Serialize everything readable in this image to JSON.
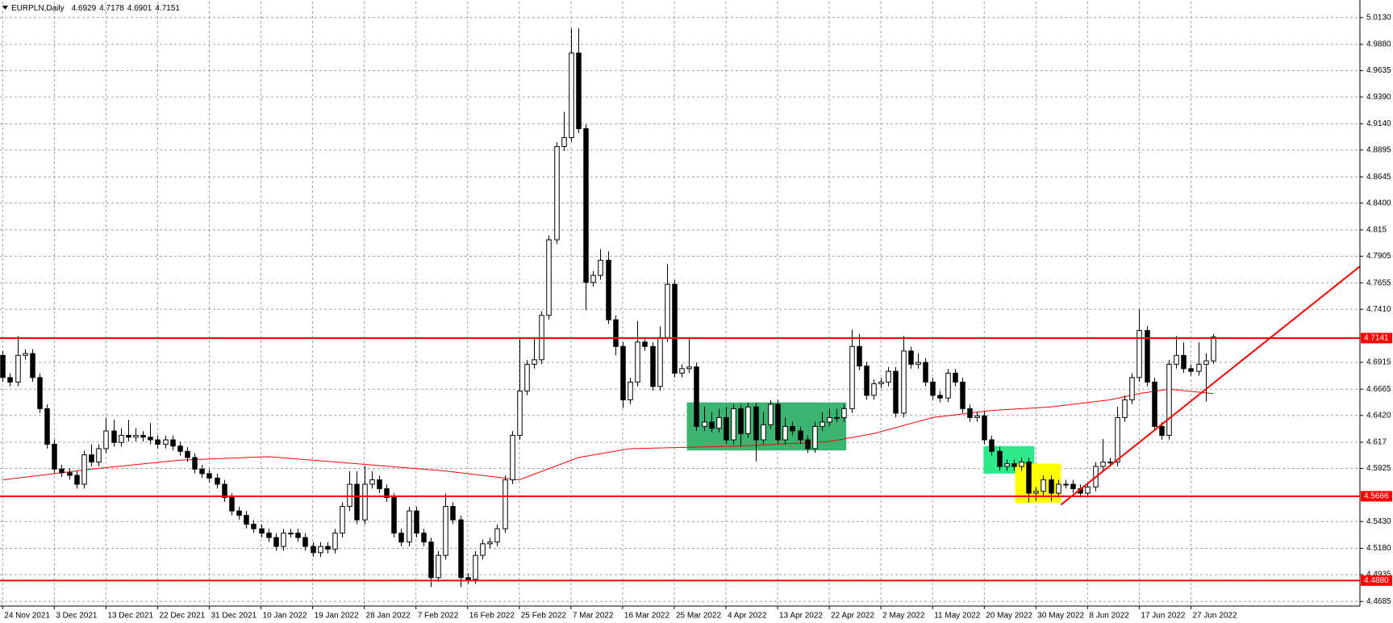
{
  "chart_data": {
    "type": "candlestick",
    "title": "EURPLN,Daily",
    "open": [
      4.698,
      4.6773,
      4.6731,
      4.698,
      4.6997,
      4.6773,
      4.6483,
      4.6151,
      4.5919,
      4.5886,
      4.5861,
      4.5778,
      4.6052,
      4.5985,
      4.611,
      4.6275,
      4.6168,
      4.6234,
      4.6217,
      4.6234,
      4.6217,
      4.6192,
      4.6151,
      4.6192,
      4.6134,
      4.6085,
      4.6027,
      4.5919,
      4.5877,
      4.5836,
      4.5778,
      4.5654,
      4.5529,
      4.5488,
      4.5405,
      4.5363,
      4.5322,
      4.5281,
      4.5198,
      4.5322,
      4.5322,
      4.5281,
      4.5198,
      4.514,
      4.5198,
      4.5173,
      4.5322,
      4.5571,
      4.5778,
      4.5446,
      4.5778,
      4.5819,
      4.5736,
      4.5654,
      4.5322,
      4.5239,
      4.5529,
      4.5322,
      4.5239,
      4.4907,
      4.5115,
      4.5571,
      4.5446,
      4.4907,
      4.4891,
      4.5115,
      4.5223,
      4.5239,
      4.5363,
      4.5819,
      4.6234,
      4.6648,
      4.6897,
      4.6939,
      4.7353,
      4.8058,
      4.8928,
      4.9011,
      4.9799,
      4.9094,
      4.766,
      4.7726,
      4.7867,
      4.7312,
      4.7063,
      4.6565,
      4.6731,
      4.7104,
      4.7063,
      4.669,
      4.7146,
      4.7643,
      4.6814,
      4.6856,
      4.6872,
      4.6317,
      4.6358,
      4.63,
      4.64,
      4.6192,
      4.6483,
      4.625,
      4.6499,
      4.6192,
      4.6333,
      4.6524,
      4.6192,
      4.6317,
      4.6275,
      4.6192,
      4.611,
      4.6317,
      4.6358,
      4.64,
      4.64,
      4.6483,
      4.7063,
      4.688,
      4.6607,
      4.6715,
      4.6731,
      4.6831,
      4.6441,
      4.7021,
      4.6897,
      4.6914,
      4.6731,
      4.6607,
      4.6582,
      4.6814,
      4.6731,
      4.6483,
      4.64,
      4.6416,
      4.6192,
      4.6085,
      4.5944,
      4.5969,
      4.5944,
      4.5985,
      4.5695,
      4.5712,
      4.5819,
      4.5695,
      4.5778,
      4.5778,
      4.5736,
      4.5695,
      4.5753,
      4.5944,
      4.5985,
      4.5985,
      4.64,
      4.6565,
      4.6773,
      4.7212,
      4.6731,
      4.6317,
      4.6234,
      4.6897,
      4.698,
      4.6856,
      4.6831,
      4.6897,
      4.6929
    ],
    "high": [
      4.702,
      4.6813,
      4.716,
      4.7037,
      4.7037,
      4.6813,
      4.6523,
      4.6191,
      4.5959,
      4.5926,
      4.5901,
      4.6092,
      4.615,
      4.615,
      4.64,
      4.638,
      4.63,
      4.638,
      4.63,
      4.6274,
      4.635,
      4.6232,
      4.6232,
      4.6232,
      4.6174,
      4.6125,
      4.6067,
      4.5959,
      4.5917,
      4.5876,
      4.5818,
      4.5694,
      4.5569,
      4.5528,
      4.5445,
      4.5403,
      4.5362,
      4.5321,
      4.5362,
      4.5362,
      4.5362,
      4.5321,
      4.5238,
      4.5238,
      4.5238,
      4.5362,
      4.5611,
      4.59,
      4.59,
      4.595,
      4.59,
      4.5859,
      4.5776,
      4.5694,
      4.5362,
      4.5569,
      4.5569,
      4.5362,
      4.5279,
      4.5155,
      4.569,
      4.5611,
      4.5486,
      4.4947,
      4.5155,
      4.5263,
      4.5279,
      4.5403,
      4.5859,
      4.6274,
      4.714,
      4.6937,
      4.715,
      4.7393,
      4.8098,
      4.8968,
      4.925,
      5.003,
      5.003,
      4.9134,
      4.7766,
      4.797,
      4.795,
      4.7352,
      4.7103,
      4.6771,
      4.73,
      4.7144,
      4.7103,
      4.725,
      4.783,
      4.7683,
      4.6896,
      4.715,
      4.6912,
      4.65,
      4.645,
      4.648,
      4.65,
      4.6523,
      4.6523,
      4.6539,
      4.6539,
      4.645,
      4.6564,
      4.6564,
      4.64,
      4.6357,
      4.6315,
      4.6232,
      4.6357,
      4.645,
      4.648,
      4.648,
      4.6523,
      4.722,
      4.718,
      4.692,
      4.6755,
      4.6771,
      4.6871,
      4.6871,
      4.716,
      4.7061,
      4.7,
      4.6954,
      4.6771,
      4.6647,
      4.6854,
      4.6854,
      4.6771,
      4.6523,
      4.6456,
      4.6456,
      4.6232,
      4.6125,
      4.6009,
      4.6009,
      4.6025,
      4.6025,
      4.5752,
      4.5859,
      4.5859,
      4.5818,
      4.5818,
      4.5818,
      4.5776,
      4.5793,
      4.5984,
      4.62,
      4.6025,
      4.65,
      4.6605,
      4.6813,
      4.741,
      4.7252,
      4.6771,
      4.6357,
      4.6937,
      4.716,
      4.71,
      4.6896,
      4.71,
      4.7,
      4.7178
    ],
    "low": [
      4.6733,
      4.6691,
      4.6691,
      4.694,
      4.6733,
      4.6443,
      4.6111,
      4.5879,
      4.5846,
      4.5821,
      4.5738,
      4.5738,
      4.5945,
      4.5945,
      4.607,
      4.6128,
      4.6128,
      4.6177,
      4.6177,
      4.6177,
      4.6152,
      4.6111,
      4.6111,
      4.6094,
      4.6045,
      4.5987,
      4.5879,
      4.5837,
      4.5796,
      4.5738,
      4.5614,
      4.5489,
      4.5448,
      4.5365,
      4.5323,
      4.5282,
      4.5241,
      4.5158,
      4.5158,
      4.5282,
      4.5241,
      4.5158,
      4.51,
      4.51,
      4.5133,
      4.5133,
      4.5282,
      4.5531,
      4.5406,
      4.5406,
      4.5738,
      4.5696,
      4.5614,
      4.5282,
      4.5199,
      4.5199,
      4.5282,
      4.5199,
      4.482,
      4.4867,
      4.5075,
      4.5406,
      4.482,
      4.4851,
      4.4851,
      4.5075,
      4.5183,
      4.5199,
      4.5323,
      4.5779,
      4.6194,
      4.6608,
      4.6857,
      4.6899,
      4.7313,
      4.8018,
      4.8888,
      4.8971,
      4.9054,
      4.74,
      4.762,
      4.7686,
      4.7272,
      4.698,
      4.649,
      4.6525,
      4.6691,
      4.7023,
      4.665,
      4.665,
      4.7106,
      4.6774,
      4.6774,
      4.6816,
      4.6277,
      4.6277,
      4.626,
      4.626,
      4.6152,
      4.6152,
      4.613,
      4.621,
      4.599,
      4.6152,
      4.6293,
      4.6152,
      4.6152,
      4.6235,
      4.6152,
      4.607,
      4.607,
      4.6277,
      4.6318,
      4.636,
      4.636,
      4.6443,
      4.684,
      4.6567,
      4.6567,
      4.6675,
      4.6691,
      4.6401,
      4.6401,
      4.6857,
      4.6857,
      4.6691,
      4.6567,
      4.6542,
      4.6542,
      4.6691,
      4.6443,
      4.636,
      4.636,
      4.6152,
      4.6045,
      4.5904,
      4.5904,
      4.5904,
      4.5904,
      4.561,
      4.562,
      4.5672,
      4.562,
      4.5655,
      4.5738,
      4.5696,
      4.5655,
      4.5655,
      4.5713,
      4.5904,
      4.5945,
      4.5945,
      4.636,
      4.6525,
      4.6733,
      4.6691,
      4.6277,
      4.6194,
      4.6194,
      4.6857,
      4.6816,
      4.6791,
      4.6791,
      4.655,
      4.6901
    ],
    "close": [
      4.6773,
      4.6731,
      4.698,
      4.6997,
      4.6773,
      4.6483,
      4.6151,
      4.5919,
      4.5886,
      4.5861,
      4.5778,
      4.6052,
      4.5985,
      4.611,
      4.6275,
      4.6168,
      4.6234,
      4.6217,
      4.6234,
      4.6217,
      4.6192,
      4.6151,
      4.6192,
      4.6134,
      4.6085,
      4.6027,
      4.5919,
      4.5877,
      4.5836,
      4.5778,
      4.5654,
      4.5529,
      4.5488,
      4.5405,
      4.5363,
      4.5322,
      4.5281,
      4.5198,
      4.5322,
      4.5322,
      4.5281,
      4.5198,
      4.514,
      4.5198,
      4.5173,
      4.5322,
      4.5571,
      4.5778,
      4.5446,
      4.5778,
      4.5819,
      4.5736,
      4.5654,
      4.5322,
      4.5239,
      4.5529,
      4.5322,
      4.5239,
      4.4907,
      4.5115,
      4.5571,
      4.5446,
      4.4907,
      4.4891,
      4.5115,
      4.5223,
      4.5239,
      4.5363,
      4.5819,
      4.6234,
      4.6648,
      4.6897,
      4.6939,
      4.7353,
      4.8058,
      4.8928,
      4.9011,
      4.9799,
      4.9094,
      4.766,
      4.7726,
      4.7867,
      4.7312,
      4.7063,
      4.6565,
      4.6731,
      4.7104,
      4.7063,
      4.669,
      4.7146,
      4.7643,
      4.6814,
      4.6856,
      4.6872,
      4.6317,
      4.6358,
      4.63,
      4.64,
      4.6192,
      4.6483,
      4.625,
      4.6499,
      4.6192,
      4.6333,
      4.6524,
      4.6192,
      4.6317,
      4.6275,
      4.6192,
      4.611,
      4.6317,
      4.6358,
      4.64,
      4.64,
      4.6483,
      4.7063,
      4.688,
      4.6607,
      4.6715,
      4.6731,
      4.6831,
      4.6441,
      4.7021,
      4.6897,
      4.6914,
      4.6731,
      4.6607,
      4.6582,
      4.6814,
      4.6731,
      4.6483,
      4.64,
      4.6416,
      4.6192,
      4.6085,
      4.5944,
      4.5969,
      4.5944,
      4.5985,
      4.5695,
      4.5712,
      4.5819,
      4.5695,
      4.5778,
      4.5778,
      4.5736,
      4.5695,
      4.5753,
      4.5944,
      4.5985,
      4.5985,
      4.64,
      4.6565,
      4.6773,
      4.7212,
      4.6731,
      4.6317,
      4.6234,
      4.6897,
      4.698,
      4.6856,
      4.6831,
      4.6897,
      4.6929,
      4.7151
    ],
    "colors": {
      "up": "#ffffff",
      "down": "#000000",
      "outline": "#000000"
    },
    "ma": {
      "x": [
        0,
        12,
        24,
        36,
        48,
        60,
        70,
        78,
        85,
        100,
        112,
        118,
        126,
        134,
        142,
        150,
        154,
        158,
        164
      ],
      "values": [
        4.5819,
        4.5919,
        4.6002,
        4.6035,
        4.5969,
        4.5902,
        4.5819,
        4.6027,
        4.611,
        4.6134,
        4.6176,
        4.625,
        4.64,
        4.6466,
        4.6499,
        4.6565,
        4.6623,
        4.6665,
        4.6623
      ],
      "color": "#ff0000"
    },
    "hlines": [
      4.7141,
      4.5666,
      {
        "value": 4.488,
        "label": "4.4880"
      }
    ],
    "hline_color": "#ff0000",
    "trendline": {
      "x": [
        143.4,
        183.9
      ],
      "values": [
        4.5587,
        4.781
      ],
      "color": "#ff0000"
    },
    "rectangles": [
      {
        "x": [
          92.7,
          114.3
        ],
        "y": [
          4.6093,
          4.6541
        ],
        "color": "#3cb371"
      },
      {
        "x": [
          132.9,
          139.8
        ],
        "y": [
          4.5877,
          4.6134
        ],
        "color": "#2ee88c"
      },
      {
        "x": [
          137.2,
          143.4
        ],
        "y": [
          4.5604,
          4.5969
        ],
        "color": "#ffff00"
      }
    ],
    "xlim": [
      -0.36,
      183.9
    ],
    "ylim": [
      4.4642,
      5.0279
    ],
    "xticks": [
      {
        "value": 0,
        "label": "24 Nov 2021"
      },
      {
        "value": 7,
        "label": "3 Dec 2021"
      },
      {
        "value": 14,
        "label": "13 Dec 2021"
      },
      {
        "value": 21,
        "label": "22 Dec 2021"
      },
      {
        "value": 28,
        "label": "31 Dec 2021"
      },
      {
        "value": 35,
        "label": "10 Jan 2022"
      },
      {
        "value": 42,
        "label": "19 Jan 2022"
      },
      {
        "value": 49,
        "label": "28 Jan 2022"
      },
      {
        "value": 56,
        "label": "7 Feb 2022"
      },
      {
        "value": 63,
        "label": "16 Feb 2022"
      },
      {
        "value": 70,
        "label": "25 Feb 2022"
      },
      {
        "value": 77,
        "label": "7 Mar 2022"
      },
      {
        "value": 84,
        "label": "16 Mar 2022"
      },
      {
        "value": 91,
        "label": "25 Mar 2022"
      },
      {
        "value": 98,
        "label": "4 Apr 2022"
      },
      {
        "value": 105,
        "label": "13 Apr 2022"
      },
      {
        "value": 112,
        "label": "22 Apr 2022"
      },
      {
        "value": 119,
        "label": "2 May 2022"
      },
      {
        "value": 126,
        "label": "11 May 2022"
      },
      {
        "value": 133,
        "label": "20 May 2022"
      },
      {
        "value": 140,
        "label": "30 May 2022"
      },
      {
        "value": 147,
        "label": "8 Jun 2022"
      },
      {
        "value": 154,
        "label": "17 Jun 2022"
      },
      {
        "value": 161,
        "label": "27 Jun 2022"
      }
    ],
    "yticks": [
      {
        "value": 5.013,
        "label": "5.0130"
      },
      {
        "value": 4.988,
        "label": "4.9880"
      },
      4.9635,
      {
        "value": 4.939,
        "label": "4.9390"
      },
      {
        "value": 4.914,
        "label": "4.9140"
      },
      4.8895,
      4.8645,
      {
        "value": 4.84,
        "label": "4.8400"
      },
      4.815,
      4.7905,
      4.7655,
      {
        "value": 4.741,
        "label": "4.7410"
      },
      4.6915,
      4.6665,
      {
        "value": 4.642,
        "label": "4.6420"
      },
      4.617,
      4.5925,
      {
        "value": 4.543,
        "label": "4.5430"
      },
      {
        "value": 4.518,
        "label": "4.5180"
      },
      4.4935,
      4.4685
    ],
    "grid": true
  }
}
